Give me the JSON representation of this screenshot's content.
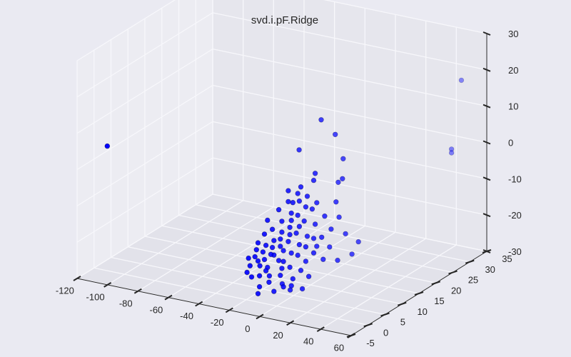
{
  "chart_data": {
    "type": "scatter",
    "projection": "3d",
    "title": "svd.i.pF.Ridge",
    "xlabel": "",
    "ylabel": "",
    "zlabel": "",
    "xlim": [
      -120,
      60
    ],
    "ylim": [
      -5,
      35
    ],
    "zlim": [
      -30,
      30
    ],
    "xticks": [
      "-120",
      "-100",
      "-80",
      "-60",
      "-40",
      "-20",
      "0",
      "20",
      "40",
      "60"
    ],
    "yticks": [
      "-5",
      "0",
      "5",
      "10",
      "15",
      "20",
      "25",
      "30",
      "35"
    ],
    "zticks": [
      "-30",
      "-20",
      "-10",
      "0",
      "10",
      "20",
      "30"
    ],
    "grid": true,
    "marker_color": "#0000ff",
    "series": [
      {
        "points": [
          [
            -118,
            3,
            2
          ],
          [
            50,
            32,
            18
          ],
          [
            48,
            30,
            0
          ],
          [
            48,
            30,
            -1
          ],
          [
            -2,
            14,
            13
          ],
          [
            5,
            15,
            9
          ],
          [
            -12,
            12,
            5
          ],
          [
            8,
            16,
            2
          ],
          [
            12,
            14,
            -2
          ],
          [
            7,
            15,
            -4
          ],
          [
            -9,
            8,
            -31
          ],
          [
            -12,
            7,
            -29
          ],
          [
            4,
            10,
            -19
          ],
          [
            14,
            14,
            -17
          ],
          [
            -3,
            8,
            -6
          ],
          [
            -6,
            7,
            -11
          ],
          [
            -10,
            6,
            -14
          ],
          [
            -14,
            5,
            -18
          ],
          [
            -17,
            4,
            -21
          ],
          [
            -20,
            4,
            -23
          ],
          [
            -15,
            5,
            -20
          ],
          [
            -11,
            6,
            -16
          ],
          [
            -7,
            7,
            -13
          ],
          [
            -4,
            8,
            -10
          ],
          [
            -1,
            9,
            -8
          ],
          [
            -8,
            7,
            -17
          ],
          [
            -12,
            6,
            -22
          ],
          [
            -16,
            4,
            -24
          ],
          [
            -5,
            8,
            -15
          ],
          [
            -2,
            9,
            -12
          ],
          [
            1,
            10,
            -9
          ],
          [
            -9,
            6,
            -19
          ],
          [
            -13,
            5,
            -16
          ],
          [
            -18,
            4,
            -19
          ],
          [
            -6,
            7,
            -20
          ],
          [
            -3,
            8,
            -18
          ],
          [
            0,
            9,
            -16
          ],
          [
            3,
            10,
            -13
          ],
          [
            -10,
            6,
            -11
          ],
          [
            -14,
            5,
            -13
          ],
          [
            -19,
            3,
            -16
          ],
          [
            -21,
            3,
            -20
          ],
          [
            -16,
            5,
            -26
          ],
          [
            -11,
            6,
            -26
          ],
          [
            -7,
            7,
            -24
          ],
          [
            2,
            10,
            -21
          ],
          [
            5,
            11,
            -17
          ],
          [
            -1,
            9,
            -23
          ],
          [
            -12,
            6,
            -8
          ],
          [
            -8,
            7,
            -6
          ],
          [
            -4,
            8,
            -4
          ],
          [
            0,
            9,
            -5
          ],
          [
            4,
            10,
            -7
          ],
          [
            -15,
            4,
            -10
          ],
          [
            -17,
            4,
            -14
          ],
          [
            -20,
            3,
            -18
          ],
          [
            -22,
            2,
            -22
          ],
          [
            -18,
            3,
            -25
          ],
          [
            -14,
            4,
            -27
          ],
          [
            -9,
            6,
            -29
          ],
          [
            -5,
            7,
            -27
          ],
          [
            -2,
            8,
            -25
          ],
          [
            1,
            9,
            -27
          ],
          [
            6,
            11,
            -23
          ],
          [
            8,
            12,
            -20
          ],
          [
            9,
            12,
            -15
          ],
          [
            7,
            11,
            -11
          ],
          [
            -6,
            7,
            -9
          ],
          [
            -9,
            6,
            -22
          ],
          [
            -13,
            5,
            -20
          ],
          [
            -11,
            6,
            -18
          ],
          [
            -7,
            7,
            -15
          ],
          [
            -3,
            8,
            -13
          ],
          [
            -16,
            4,
            -17
          ],
          [
            -19,
            3,
            -21
          ],
          [
            -15,
            4,
            -23
          ],
          [
            -10,
            6,
            -24
          ],
          [
            -4,
            8,
            -21
          ],
          [
            -1,
            9,
            -19
          ],
          [
            2,
            10,
            -17
          ],
          [
            -5,
            7,
            -6
          ],
          [
            -2,
            8,
            -2
          ],
          [
            2,
            10,
            -1
          ],
          [
            10,
            13,
            -8
          ],
          [
            12,
            13,
            -12
          ],
          [
            3,
            10,
            1
          ],
          [
            -8,
            7,
            -3
          ],
          [
            -18,
            3,
            -28
          ],
          [
            -21,
            2,
            -25
          ],
          [
            -23,
            2,
            -20
          ],
          [
            -24,
            2,
            -24
          ],
          [
            -19,
            3,
            -30
          ],
          [
            -13,
            5,
            -30
          ],
          [
            -6,
            7,
            -29
          ],
          [
            -1,
            8,
            -30
          ],
          [
            11,
            13,
            -24
          ],
          [
            16,
            15,
            -23
          ],
          [
            18,
            16,
            -20
          ]
        ]
      }
    ]
  }
}
